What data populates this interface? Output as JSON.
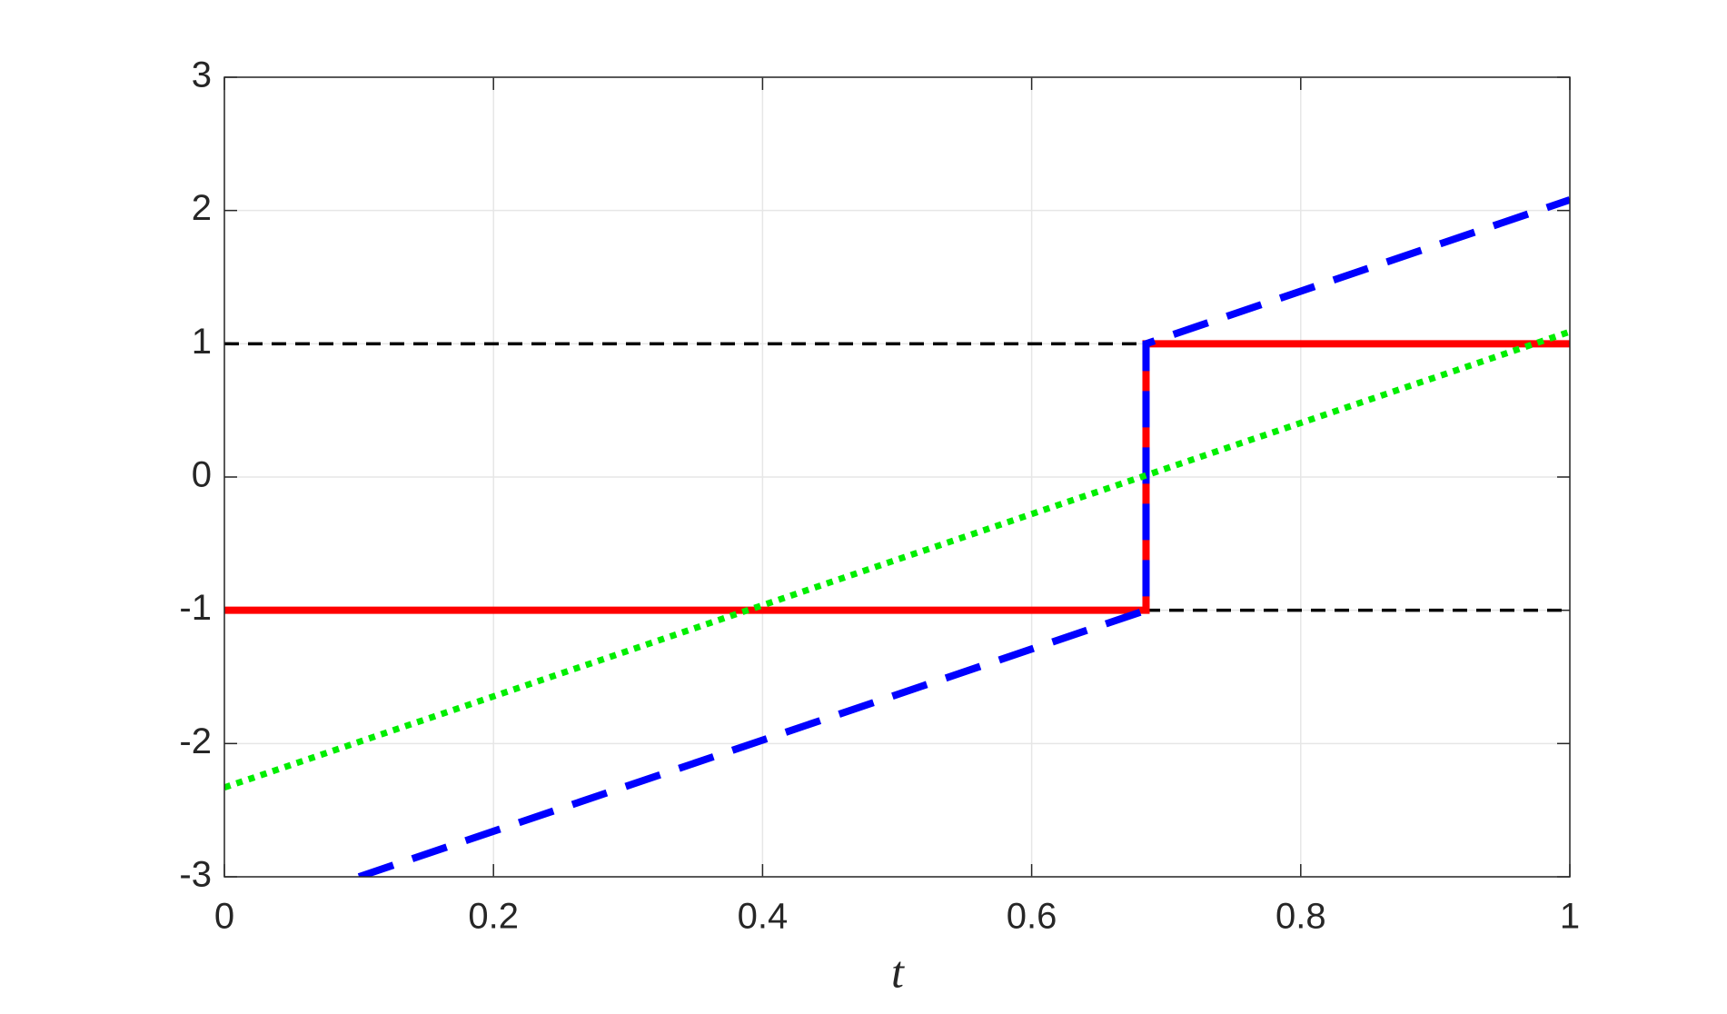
{
  "chart_data": {
    "type": "line",
    "xlabel": "t",
    "xlim": [
      0,
      1
    ],
    "xticks": [
      0,
      0.2,
      0.4,
      0.6,
      0.8,
      1
    ],
    "ylim": [
      -3,
      3
    ],
    "yticks": [
      -3,
      -2,
      -1,
      0,
      1,
      2,
      3
    ],
    "grid": true,
    "series": [
      {
        "color": "#000000",
        "style": "dashed",
        "x": [
          0,
          1
        ],
        "values": [
          1,
          1
        ]
      },
      {
        "color": "#000000",
        "style": "dashed",
        "x": [
          0,
          1
        ],
        "values": [
          -1,
          -1
        ]
      },
      {
        "color": "#ff0000",
        "style": "solid",
        "x": [
          0,
          0.685,
          0.685,
          1
        ],
        "values": [
          -1,
          -1,
          1,
          1
        ]
      },
      {
        "color": "#0000ff",
        "style": "dashed",
        "x": [
          0.1,
          0.685,
          0.685,
          1
        ],
        "values": [
          -3,
          -1,
          1,
          2.08
        ]
      },
      {
        "color": "#00ee00",
        "style": "dotted",
        "x": [
          0,
          1
        ],
        "values": [
          -2.33,
          1.09
        ]
      }
    ]
  }
}
